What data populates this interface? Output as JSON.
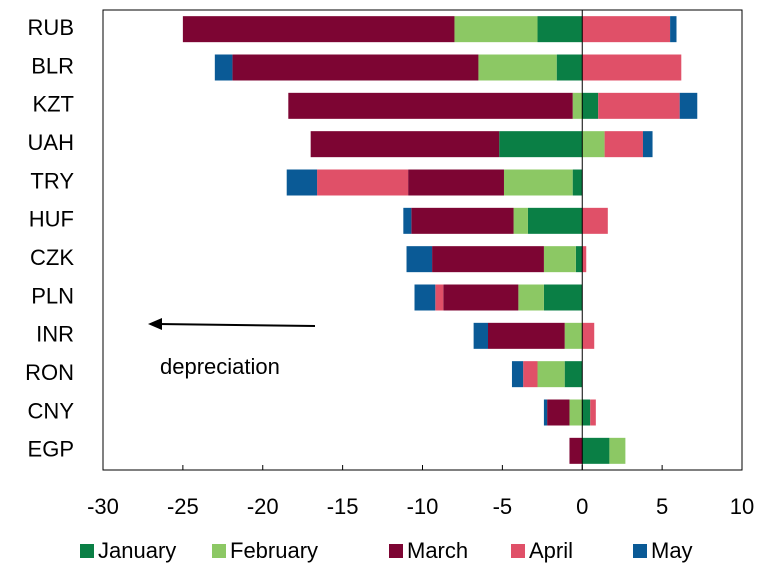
{
  "chart_data": {
    "type": "bar",
    "orientation": "horizontal",
    "stacked": true,
    "categories": [
      "RUB",
      "BLR",
      "KZT",
      "UAH",
      "TRY",
      "HUF",
      "CZK",
      "PLN",
      "INR",
      "RON",
      "CNY",
      "EGP"
    ],
    "series": [
      {
        "name": "January",
        "color": "#0a7f45",
        "values": [
          -2.8,
          -1.6,
          1.0,
          -5.2,
          -0.6,
          -3.4,
          -0.4,
          -2.4,
          0,
          -1.1,
          0.5,
          1.7
        ]
      },
      {
        "name": "February",
        "color": "#8cc864",
        "values": [
          -5.2,
          -4.9,
          -0.6,
          1.4,
          -4.3,
          -0.9,
          -2.0,
          -1.6,
          -1.1,
          -1.7,
          -0.8,
          1.0
        ]
      },
      {
        "name": "March",
        "color": "#7d0533",
        "values": [
          -17.0,
          -15.4,
          -17.8,
          -11.8,
          -6.0,
          -6.4,
          -7.0,
          -4.7,
          -4.8,
          0,
          -1.4,
          -0.8
        ]
      },
      {
        "name": "April",
        "color": "#e05068",
        "values": [
          5.5,
          6.2,
          5.1,
          2.4,
          -5.7,
          1.6,
          0.25,
          -0.5,
          0.75,
          -0.9,
          0.35,
          0
        ]
      },
      {
        "name": "May",
        "color": "#0a5a96",
        "values": [
          0.4,
          -1.1,
          1.1,
          0.6,
          -1.9,
          -0.5,
          -1.6,
          -1.3,
          -0.9,
          -0.7,
          -0.2,
          0
        ]
      }
    ],
    "xlim": [
      -30,
      10
    ],
    "xticks": [
      -30,
      -25,
      -20,
      -15,
      -10,
      -5,
      0,
      5,
      10
    ],
    "annotation": "depreciation",
    "legend": "bottom"
  }
}
